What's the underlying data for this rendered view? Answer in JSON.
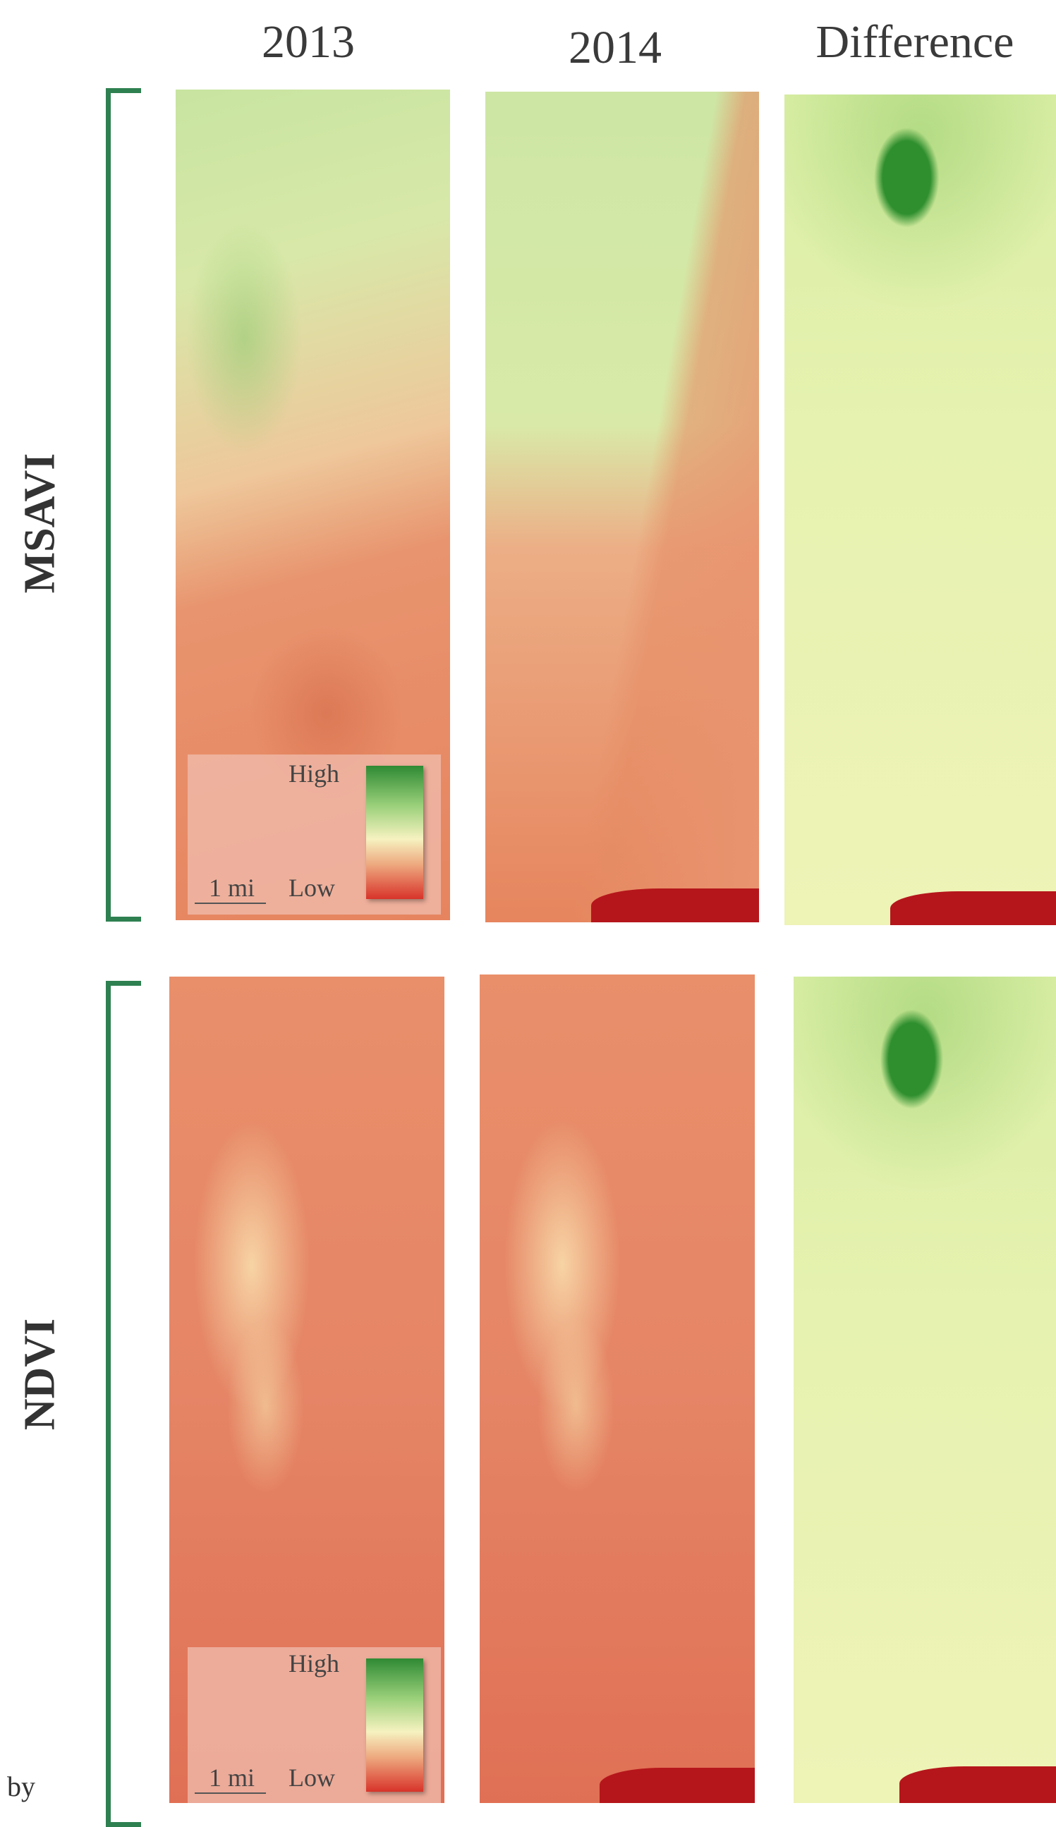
{
  "headers": [
    "2013",
    "2014",
    "Difference"
  ],
  "rows": [
    {
      "label": "MSAVI",
      "legend": {
        "high": "High",
        "low": "Low",
        "scale": "1 mi"
      }
    },
    {
      "label": "NDVI",
      "legend": {
        "high": "High",
        "low": "Low",
        "scale": "1 mi"
      }
    }
  ],
  "footer": "by"
}
